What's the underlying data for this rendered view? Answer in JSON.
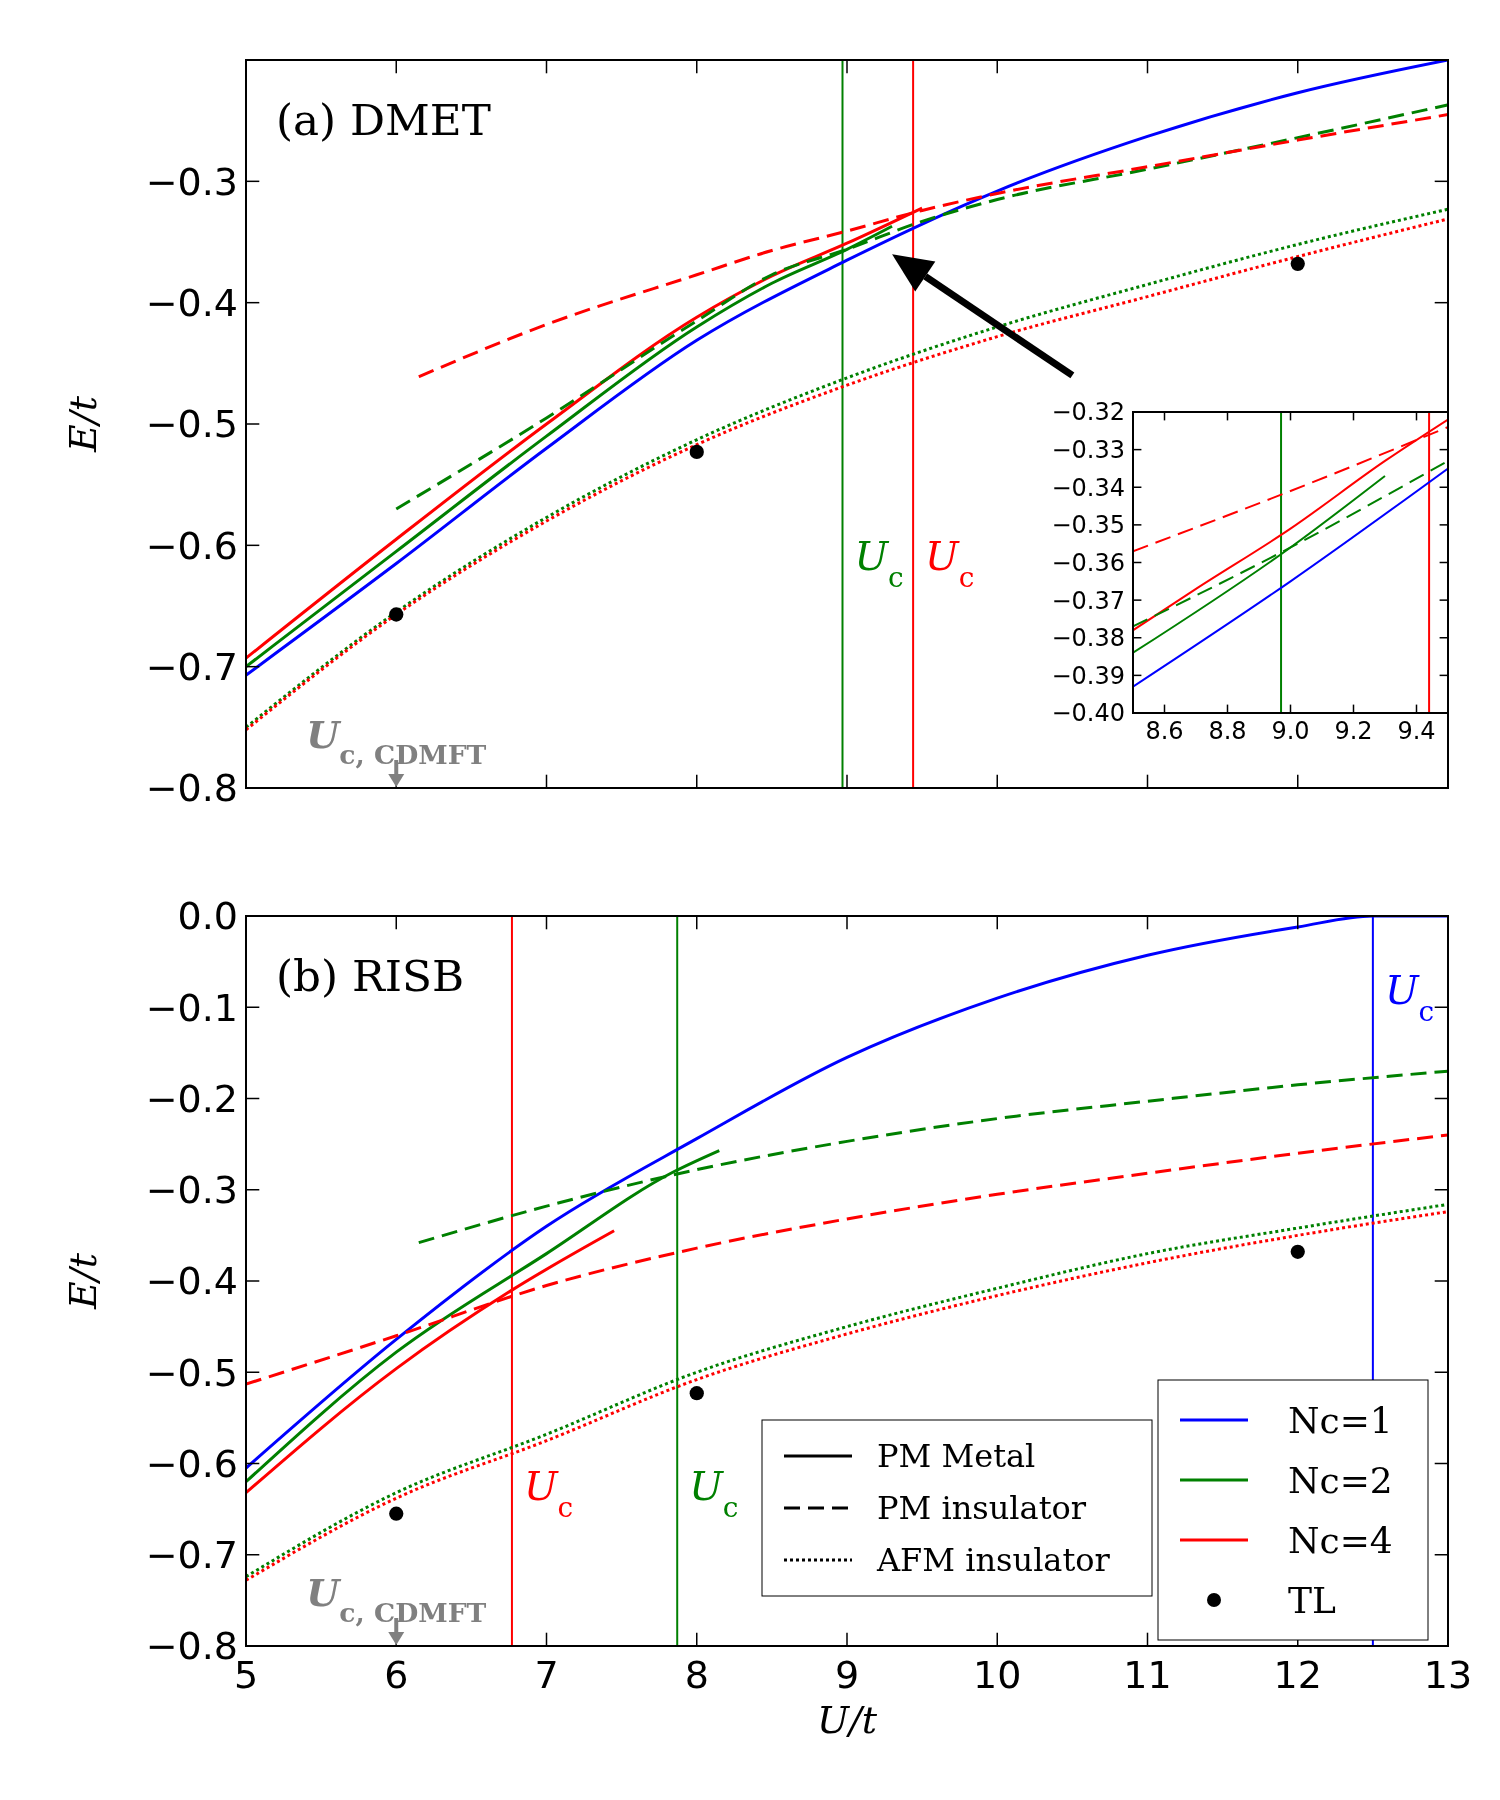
{
  "chart_data": [
    {
      "type": "line",
      "title": "(a) DMET",
      "ylabel": "E/t",
      "xlim": [
        5,
        13
      ],
      "ylim": [
        -0.8,
        -0.2
      ],
      "xticks": [
        5,
        6,
        7,
        8,
        9,
        10,
        11,
        12,
        13
      ],
      "yticks": [
        {
          "value": -0.8,
          "label": "−0.8"
        },
        {
          "value": -0.7,
          "label": "−0.7"
        },
        {
          "value": -0.6,
          "label": "−0.6"
        },
        {
          "value": -0.5,
          "label": "−0.5"
        },
        {
          "value": -0.4,
          "label": "−0.4"
        },
        {
          "value": -0.3,
          "label": "−0.3"
        }
      ],
      "tick_labels": "y",
      "grid": false,
      "legend": false,
      "series": [
        {
          "color": "#0000ff",
          "line_style": "solid",
          "x": [
            5,
            6,
            7,
            8,
            9,
            10,
            11,
            12,
            13
          ],
          "values": [
            -0.707,
            -0.615,
            -0.52,
            -0.431,
            -0.365,
            -0.308,
            -0.263,
            -0.227,
            -0.2
          ]
        },
        {
          "color": "#008000",
          "line_style": "solid",
          "x": [
            5,
            6,
            7,
            8,
            8.5,
            9,
            9.3
          ],
          "values": [
            -0.7,
            -0.605,
            -0.51,
            -0.42,
            -0.384,
            -0.356,
            -0.337
          ]
        },
        {
          "color": "#ff0000",
          "line_style": "solid",
          "x": [
            5,
            6,
            7,
            8,
            8.5,
            9,
            9.5
          ],
          "values": [
            -0.693,
            -0.595,
            -0.5,
            -0.412,
            -0.378,
            -0.351,
            -0.322
          ]
        },
        {
          "color": "#008000",
          "line_style": "dashed",
          "x": [
            6,
            7,
            8,
            8.5,
            9,
            9.5,
            10,
            11,
            12,
            13
          ],
          "values": [
            -0.57,
            -0.495,
            -0.415,
            -0.377,
            -0.356,
            -0.333,
            -0.315,
            -0.29,
            -0.264,
            -0.237
          ]
        },
        {
          "color": "#ff0000",
          "line_style": "dashed",
          "x": [
            6.15,
            7,
            8,
            8.5,
            9,
            9.5,
            10,
            11,
            12,
            13
          ],
          "values": [
            -0.461,
            -0.418,
            -0.377,
            -0.357,
            -0.341,
            -0.324,
            -0.31,
            -0.288,
            -0.266,
            -0.245
          ]
        },
        {
          "color": "#008000",
          "line_style": "dotted",
          "x": [
            5,
            6,
            7,
            8,
            9,
            10,
            11,
            12,
            13
          ],
          "values": [
            -0.75,
            -0.655,
            -0.577,
            -0.513,
            -0.462,
            -0.42,
            -0.385,
            -0.352,
            -0.323
          ]
        },
        {
          "color": "#ff0000",
          "line_style": "dotted",
          "x": [
            5,
            6,
            7,
            8,
            9,
            10,
            11,
            12,
            13
          ],
          "values": [
            -0.752,
            -0.657,
            -0.58,
            -0.517,
            -0.468,
            -0.428,
            -0.395,
            -0.362,
            -0.331
          ]
        },
        {
          "type": "scatter",
          "color": "#000000",
          "marker": "circle",
          "x": [
            6,
            8,
            12
          ],
          "values": [
            -0.657,
            -0.523,
            -0.368
          ]
        }
      ],
      "ref_lines": [
        {
          "axis": "x",
          "value": 8.97,
          "label": "U$_{c}$",
          "color": "#008000"
        },
        {
          "axis": "x",
          "value": 9.44,
          "label": "U$_{c}$",
          "color": "#ff0000"
        }
      ],
      "annotations": [
        "U$_{c, CDMFT}$"
      ]
    },
    {
      "type": "line",
      "xlim": [
        8.5,
        9.5
      ],
      "ylim": [
        -0.4,
        -0.32
      ],
      "xticks": [
        {
          "value": 8.6,
          "label": "8.6"
        },
        {
          "value": 8.8,
          "label": "8.8"
        },
        {
          "value": 9.0,
          "label": "9.0"
        },
        {
          "value": 9.2,
          "label": "9.2"
        },
        {
          "value": 9.4,
          "label": "9.4"
        }
      ],
      "yticks": [
        {
          "value": -0.4,
          "label": "−0.40"
        },
        {
          "value": -0.39,
          "label": "−0.39"
        },
        {
          "value": -0.38,
          "label": "−0.38"
        },
        {
          "value": -0.37,
          "label": "−0.37"
        },
        {
          "value": -0.36,
          "label": "−0.36"
        },
        {
          "value": -0.35,
          "label": "−0.35"
        },
        {
          "value": -0.34,
          "label": "−0.34"
        },
        {
          "value": -0.33,
          "label": "−0.33"
        },
        {
          "value": -0.32,
          "label": "−0.32"
        }
      ],
      "grid": false,
      "legend": false,
      "series": [
        {
          "color": "#0000ff",
          "line_style": "solid",
          "x": [
            8.5,
            9.0,
            9.5
          ],
          "values": [
            -0.393,
            -0.365,
            -0.335
          ]
        },
        {
          "color": "#008000",
          "line_style": "solid",
          "x": [
            8.5,
            9.0,
            9.3
          ],
          "values": [
            -0.384,
            -0.356,
            -0.337
          ]
        },
        {
          "color": "#ff0000",
          "line_style": "solid",
          "x": [
            8.5,
            8.7,
            9.0,
            9.3,
            9.5
          ],
          "values": [
            -0.378,
            -0.367,
            -0.351,
            -0.333,
            -0.322
          ]
        },
        {
          "color": "#008000",
          "line_style": "dashed",
          "x": [
            8.5,
            9.0,
            9.5
          ],
          "values": [
            -0.377,
            -0.356,
            -0.333
          ]
        },
        {
          "color": "#ff0000",
          "line_style": "dashed",
          "x": [
            8.5,
            9.0,
            9.5
          ],
          "values": [
            -0.357,
            -0.341,
            -0.324
          ]
        }
      ],
      "ref_lines": [
        {
          "axis": "x",
          "value": 8.97,
          "color": "#008000"
        },
        {
          "axis": "x",
          "value": 9.44,
          "color": "#ff0000"
        }
      ]
    },
    {
      "type": "line",
      "title": "(b) RISB",
      "xlabel": "U/t",
      "ylabel": "E/t",
      "xlim": [
        5,
        13
      ],
      "ylim": [
        -0.8,
        0
      ],
      "xticks": [
        5,
        6,
        7,
        8,
        9,
        10,
        11,
        12,
        13
      ],
      "yticks": [
        {
          "value": -0.8,
          "label": "−0.8"
        },
        {
          "value": -0.7,
          "label": "−0.7"
        },
        {
          "value": -0.6,
          "label": "−0.6"
        },
        {
          "value": -0.5,
          "label": "−0.5"
        },
        {
          "value": -0.4,
          "label": "−0.4"
        },
        {
          "value": -0.3,
          "label": "−0.3"
        },
        {
          "value": -0.2,
          "label": "−0.2"
        },
        {
          "value": -0.1,
          "label": "−0.1"
        },
        {
          "value": 0,
          "label": "0.0"
        }
      ],
      "grid": false,
      "legend": "bottom right",
      "series": [
        {
          "name": "Nc=1",
          "color": "#0000ff",
          "line_style": "solid",
          "x": [
            5,
            6,
            7,
            8,
            9,
            10,
            11,
            12,
            12.5,
            13
          ],
          "values": [
            -0.605,
            -0.464,
            -0.34,
            -0.244,
            -0.155,
            -0.09,
            -0.043,
            -0.012,
            0,
            0
          ]
        },
        {
          "name": "Nc=2",
          "color": "#008000",
          "line_style": "solid",
          "x": [
            5,
            6,
            7,
            7.85,
            8.15
          ],
          "values": [
            -0.62,
            -0.478,
            -0.37,
            -0.28,
            -0.257
          ]
        },
        {
          "name": "Nc=4",
          "color": "#ff0000",
          "line_style": "solid",
          "x": [
            5,
            6,
            6.77,
            7.45
          ],
          "values": [
            -0.632,
            -0.496,
            -0.41,
            -0.345
          ]
        },
        {
          "color": "#008000",
          "line_style": "dashed",
          "x": [
            6.15,
            7,
            8,
            9,
            10,
            11,
            12,
            13
          ],
          "values": [
            -0.358,
            -0.318,
            -0.278,
            -0.247,
            -0.222,
            -0.203,
            -0.185,
            -0.17
          ]
        },
        {
          "color": "#ff0000",
          "line_style": "dashed",
          "x": [
            5,
            6,
            7,
            8,
            9,
            10,
            11,
            12,
            13
          ],
          "values": [
            -0.513,
            -0.46,
            -0.405,
            -0.364,
            -0.332,
            -0.305,
            -0.282,
            -0.26,
            -0.24
          ]
        },
        {
          "color": "#008000",
          "line_style": "dotted",
          "x": [
            5,
            6,
            7,
            8,
            9,
            10,
            11,
            12,
            13
          ],
          "values": [
            -0.724,
            -0.632,
            -0.568,
            -0.5,
            -0.45,
            -0.408,
            -0.37,
            -0.342,
            -0.316
          ]
        },
        {
          "color": "#ff0000",
          "line_style": "dotted",
          "x": [
            5,
            6,
            7,
            8,
            9,
            10,
            11,
            12,
            13
          ],
          "values": [
            -0.728,
            -0.638,
            -0.575,
            -0.508,
            -0.458,
            -0.416,
            -0.38,
            -0.35,
            -0.324
          ]
        },
        {
          "name": "TL",
          "type": "scatter",
          "color": "#000000",
          "marker": "circle",
          "x": [
            6,
            8,
            12
          ],
          "values": [
            -0.655,
            -0.523,
            -0.368
          ]
        }
      ],
      "ref_lines": [
        {
          "axis": "x",
          "value": 6.77,
          "label": "U$_{c}$",
          "color": "#ff0000"
        },
        {
          "axis": "x",
          "value": 7.87,
          "label": "U$_{c}$",
          "color": "#008000"
        },
        {
          "axis": "x",
          "value": 12.5,
          "label": "U$_{c}$",
          "color": "#0000ff"
        }
      ],
      "annotations": [
        "U$_{c, CDMFT}$",
        "PM Metal",
        "PM insulator",
        "AFM insulator"
      ]
    }
  ]
}
